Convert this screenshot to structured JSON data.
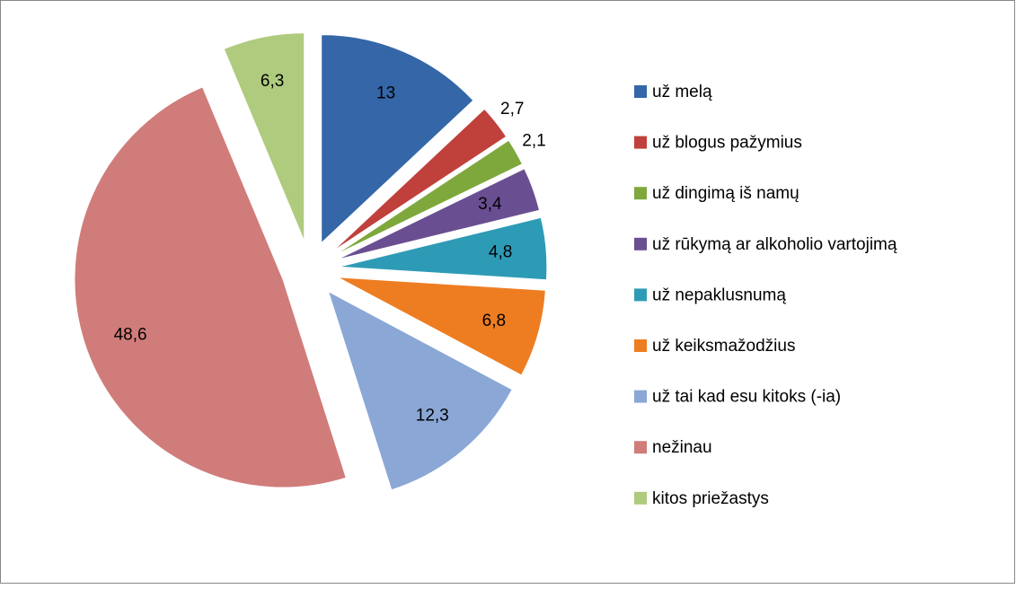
{
  "chart_data": {
    "type": "pie",
    "categories": [
      "už melą",
      "už blogus pažymius",
      "už dingimą iš namų",
      "už rūkymą ar alkoholio vartojimą",
      "už nepaklusnumą",
      "už keiksmažodžius",
      "už tai kad esu kitoks (-ia)",
      "nežinau",
      "kitos priežastys"
    ],
    "values": [
      13,
      2.7,
      2.1,
      3.4,
      4.8,
      6.8,
      12.3,
      48.6,
      6.3
    ],
    "value_labels": [
      "13",
      "2,7",
      "2,1",
      "3,4",
      "4,8",
      "6,8",
      "12,3",
      "48,6",
      "6,3"
    ],
    "colors": [
      "#3466a8",
      "#c0403c",
      "#7fa83c",
      "#6a4e92",
      "#2e9bb6",
      "#ee7d22",
      "#8aa7d6",
      "#d07c7a",
      "#aecb7e"
    ],
    "legend": "right"
  }
}
